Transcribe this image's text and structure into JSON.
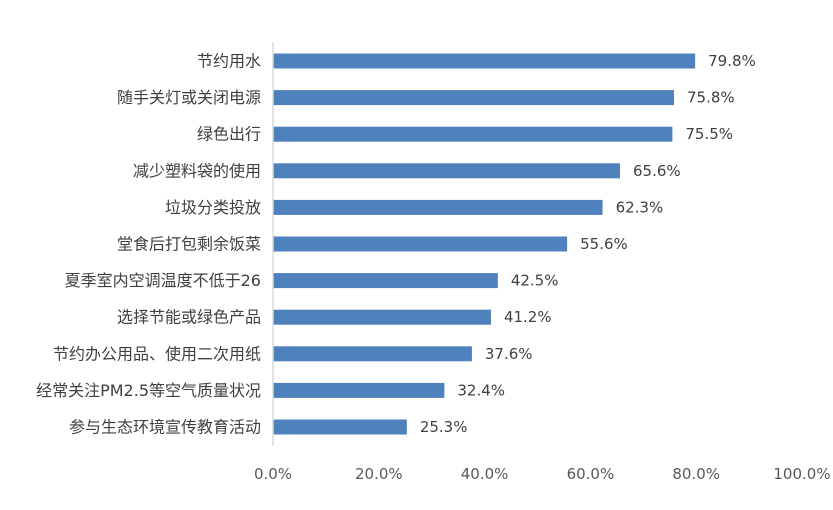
{
  "chart_data": {
    "type": "bar",
    "orientation": "horizontal",
    "categories": [
      "节约用水",
      "随手关灯或关闭电源",
      "绿色出行",
      "减少塑料袋的使用",
      "垃圾分类投放",
      "堂食后打包剩余饭菜",
      "夏季室内空调温度不低于26",
      "选择节能或绿色产品",
      "节约办公用品、使用二次用纸",
      "经常关注PM2.5等空气质量状况",
      "参与生态环境宣传教育活动"
    ],
    "values": [
      79.8,
      75.8,
      75.5,
      65.6,
      62.3,
      55.6,
      42.5,
      41.2,
      37.6,
      32.4,
      25.3
    ],
    "value_labels": [
      "79.8%",
      "75.8%",
      "75.5%",
      "65.6%",
      "62.3%",
      "55.6%",
      "42.5%",
      "41.2%",
      "37.6%",
      "32.4%",
      "25.3%"
    ],
    "xticks": [
      "0.0%",
      "20.0%",
      "40.0%",
      "60.0%",
      "80.0%",
      "100.0%"
    ],
    "xlim": [
      0,
      100
    ],
    "title": "",
    "xlabel": "",
    "ylabel": "",
    "grid": false,
    "legend": "none",
    "bar_color": "#4F81BD",
    "axis_color": "#D9D9D9",
    "text_color": "#404040"
  }
}
